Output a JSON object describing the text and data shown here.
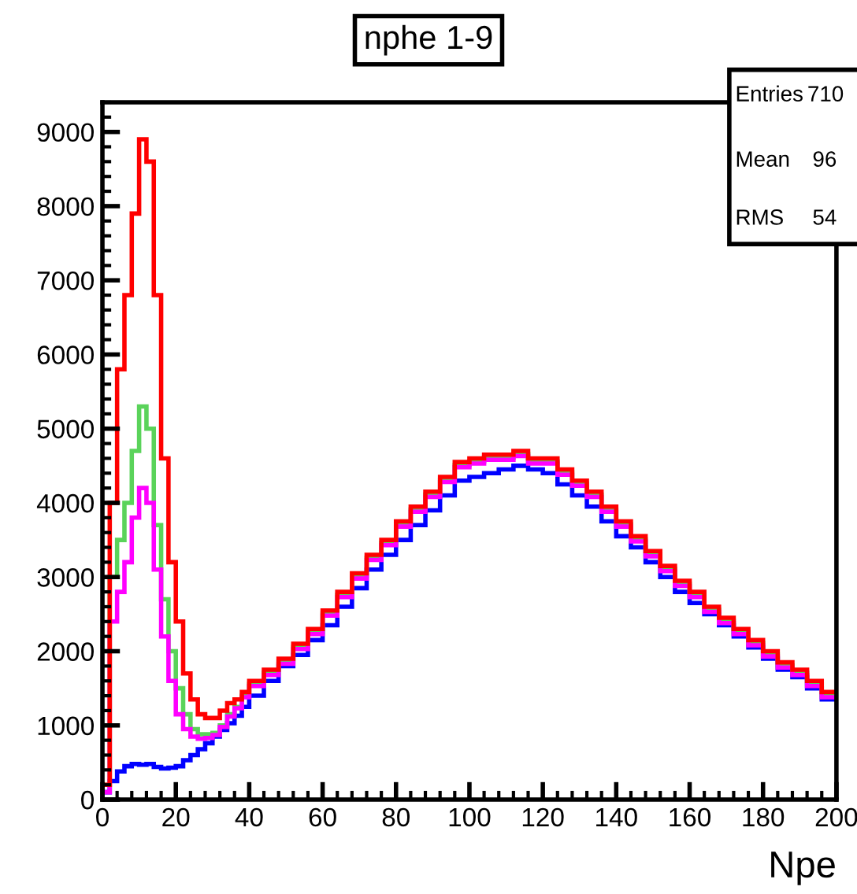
{
  "chart_data": {
    "type": "histogram",
    "title": "nphe 1-9",
    "xlabel": "Npe",
    "annotations": [
      "Entries",
      "710",
      "Mean",
      "96",
      "RMS",
      "54"
    ],
    "bins": [
      0,
      2,
      4,
      6,
      8,
      10,
      12,
      14,
      16,
      18,
      20,
      22,
      24,
      26,
      28,
      30,
      32,
      34,
      36,
      38,
      40,
      44,
      48,
      52,
      56,
      60,
      64,
      68,
      72,
      76,
      80,
      84,
      88,
      92,
      96,
      100,
      104,
      108,
      112,
      116,
      120,
      124,
      128,
      132,
      136,
      140,
      144,
      148,
      152,
      156,
      160,
      164,
      168,
      172,
      176,
      180,
      184,
      188,
      192,
      196,
      200
    ],
    "series": [
      {
        "color": "#0000ff",
        "values": [
          100,
          250,
          380,
          450,
          480,
          470,
          480,
          440,
          420,
          430,
          450,
          530,
          600,
          680,
          760,
          850,
          940,
          1030,
          1130,
          1250,
          1400,
          1600,
          1800,
          1950,
          2150,
          2350,
          2600,
          2850,
          3100,
          3300,
          3500,
          3700,
          3900,
          4100,
          4300,
          4350,
          4400,
          4450,
          4500,
          4450,
          4400,
          4250,
          4100,
          3950,
          3750,
          3550,
          3400,
          3200,
          3000,
          2800,
          2650,
          2500,
          2350,
          2200,
          2050,
          1900,
          1750,
          1650,
          1500,
          1350
        ]
      },
      {
        "color": "#5ad35a",
        "values": [
          200,
          3000,
          3500,
          4000,
          4700,
          5300,
          5000,
          3700,
          2700,
          2000,
          1500,
          1150,
          950,
          880,
          880,
          900,
          1000,
          1150,
          1250,
          1400,
          1560,
          1710,
          1860,
          2060,
          2260,
          2510,
          2760,
          3010,
          3260,
          3460,
          3710,
          3910,
          4110,
          4310,
          4510,
          4560,
          4610,
          4610,
          4660,
          4560,
          4560,
          4410,
          4260,
          4110,
          3910,
          3710,
          3510,
          3310,
          3110,
          2910,
          2760,
          2560,
          2410,
          2260,
          2110,
          1960,
          1810,
          1710,
          1560,
          1410
        ]
      },
      {
        "color": "#ff00ff",
        "values": [
          100,
          2400,
          2800,
          3200,
          3800,
          4200,
          4000,
          3100,
          2200,
          1600,
          1150,
          950,
          850,
          820,
          830,
          870,
          980,
          1120,
          1230,
          1380,
          1530,
          1680,
          1830,
          2030,
          2230,
          2480,
          2730,
          2980,
          3230,
          3430,
          3680,
          3880,
          4080,
          4280,
          4480,
          4530,
          4580,
          4580,
          4630,
          4530,
          4530,
          4380,
          4230,
          4080,
          3880,
          3680,
          3480,
          3280,
          3080,
          2880,
          2730,
          2530,
          2380,
          2230,
          2080,
          1930,
          1780,
          1680,
          1530,
          1380
        ]
      },
      {
        "color": "#ff0000",
        "values": [
          200,
          4000,
          5800,
          6800,
          7900,
          8900,
          8600,
          6800,
          4600,
          3200,
          2400,
          1700,
          1350,
          1150,
          1100,
          1100,
          1200,
          1300,
          1350,
          1450,
          1600,
          1750,
          1900,
          2100,
          2300,
          2550,
          2800,
          3050,
          3300,
          3500,
          3750,
          3950,
          4150,
          4350,
          4550,
          4600,
          4650,
          4650,
          4700,
          4600,
          4600,
          4450,
          4300,
          4150,
          3950,
          3750,
          3550,
          3350,
          3150,
          2950,
          2800,
          2600,
          2450,
          2300,
          2150,
          2000,
          1850,
          1750,
          1600,
          1450
        ]
      }
    ],
    "xlim": [
      0,
      200
    ],
    "xticks": [
      0,
      20,
      40,
      60,
      80,
      100,
      120,
      140,
      160,
      180,
      200
    ],
    "ylim": [
      0,
      9400
    ],
    "yticks": [
      0,
      1000,
      2000,
      3000,
      4000,
      5000,
      6000,
      7000,
      8000,
      9000
    ],
    "grid": false
  }
}
